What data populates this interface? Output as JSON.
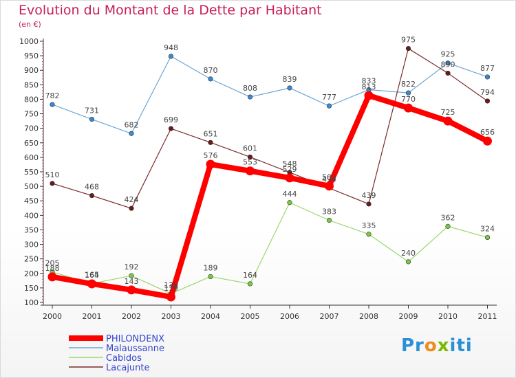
{
  "title": "Evolution du Montant de la Dette par Habitant",
  "subtitle": "(en €)",
  "logo": {
    "p1": "Pr",
    "p2": "o",
    "p3": "x",
    "p4": "iti"
  },
  "chart_data": {
    "type": "line",
    "title": "Evolution du Montant de la Dette par Habitant",
    "ylabel": "(en €)",
    "xlabel": "",
    "x": [
      "2000",
      "2001",
      "2002",
      "2003",
      "2004",
      "2005",
      "2006",
      "2007",
      "2008",
      "2009",
      "2010",
      "2011"
    ],
    "ylim": [
      100,
      1000
    ],
    "yticks": [
      100,
      150,
      200,
      250,
      300,
      350,
      400,
      450,
      500,
      550,
      600,
      650,
      700,
      750,
      800,
      850,
      900,
      950,
      1000
    ],
    "grid": false,
    "legend": "bottom-left",
    "series": [
      {
        "name": "PHILONDENX",
        "color": "#ff0000",
        "values": [
          188,
          164,
          143,
          119,
          576,
          553,
          529,
          501,
          813,
          770,
          725,
          656
        ],
        "labels": [
          "188",
          "164",
          "143",
          "119",
          "576",
          "553",
          "529",
          "501",
          "813",
          "770",
          "725",
          "656"
        ]
      },
      {
        "name": "Malaussanne",
        "color": "#6aa6d8",
        "values": [
          782,
          731,
          682,
          948,
          870,
          808,
          839,
          777,
          833,
          822,
          925,
          877
        ],
        "labels": [
          "782",
          "731",
          "682",
          "948",
          "870",
          "808",
          "839",
          "777",
          "833",
          "822",
          "925",
          "877"
        ]
      },
      {
        "name": "Cabidos",
        "color": "#9ad86a",
        "values": [
          205,
          165,
          192,
          130,
          189,
          164,
          444,
          383,
          335,
          240,
          362,
          324
        ],
        "labels": [
          "205",
          "165",
          "192",
          "130",
          "189",
          "164",
          "444",
          "383",
          "335",
          "240",
          "362",
          "324"
        ]
      },
      {
        "name": "Lacajunte",
        "color": "#7a2a2a",
        "values": [
          510,
          468,
          424,
          699,
          651,
          601,
          548,
          494,
          439,
          975,
          890,
          794
        ],
        "labels": [
          "510",
          "468",
          "424",
          "699",
          "651",
          "601",
          "548",
          "494",
          "439",
          "975",
          "890",
          "794"
        ]
      }
    ]
  }
}
